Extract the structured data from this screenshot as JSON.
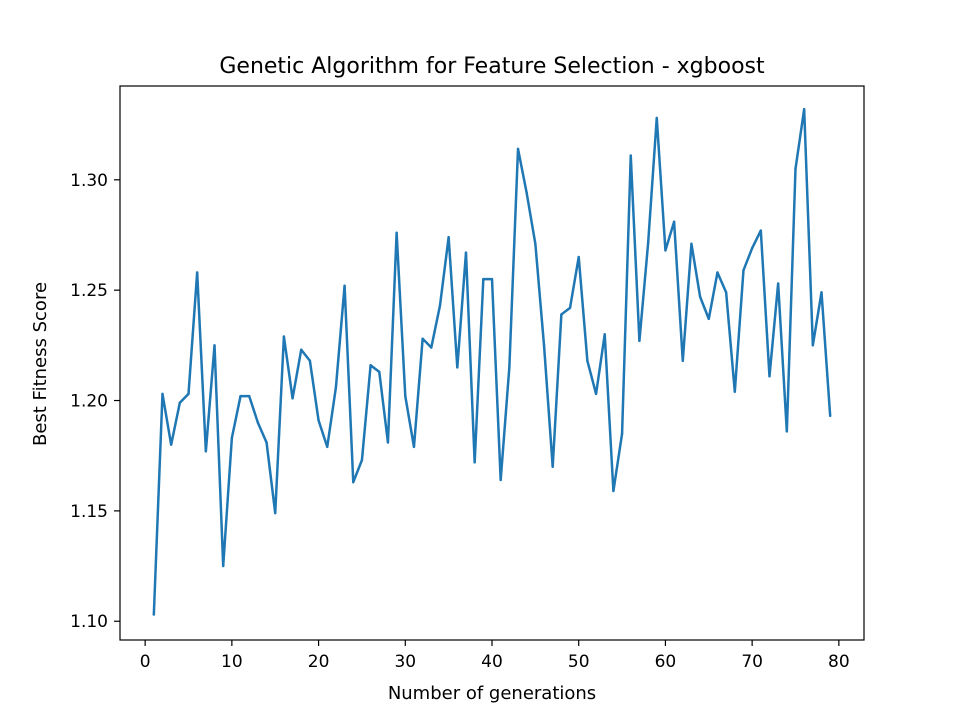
{
  "chart_data": {
    "type": "line",
    "title": "Genetic Algorithm for Feature Selection - xgboost",
    "xlabel": "Number of generations",
    "ylabel": "Best Fitness Score",
    "xlim": [
      -2.9,
      82.9
    ],
    "ylim": [
      1.0915,
      1.3425
    ],
    "xticks": [
      0,
      10,
      20,
      30,
      40,
      50,
      60,
      70,
      80
    ],
    "yticks": [
      1.1,
      1.15,
      1.2,
      1.25,
      1.3
    ],
    "ytick_labels": [
      "1.10",
      "1.15",
      "1.20",
      "1.25",
      "1.30"
    ],
    "grid": false,
    "line_color": "#1f77b4",
    "series": [
      {
        "x": [
          1,
          2,
          3,
          4,
          5,
          6,
          7,
          8,
          9,
          10,
          11,
          12,
          13,
          14,
          15,
          16,
          17,
          18,
          19,
          20,
          21,
          22,
          23,
          24,
          25,
          26,
          27,
          28,
          29,
          30,
          31,
          32,
          33,
          34,
          35,
          36,
          37,
          38,
          39,
          40,
          41,
          42,
          43,
          44,
          45,
          46,
          47,
          48,
          49,
          50,
          51,
          52,
          53,
          54,
          55,
          56,
          57,
          58,
          59,
          60,
          61,
          62,
          63,
          64,
          65,
          66,
          67,
          68,
          69,
          70,
          71,
          72,
          73,
          74,
          75,
          76,
          77,
          78,
          79
        ],
        "values": [
          1.103,
          1.203,
          1.18,
          1.199,
          1.203,
          1.258,
          1.177,
          1.225,
          1.125,
          1.183,
          1.202,
          1.202,
          1.19,
          1.181,
          1.149,
          1.229,
          1.201,
          1.223,
          1.218,
          1.191,
          1.179,
          1.206,
          1.252,
          1.163,
          1.173,
          1.216,
          1.213,
          1.181,
          1.276,
          1.202,
          1.179,
          1.228,
          1.224,
          1.243,
          1.274,
          1.215,
          1.267,
          1.172,
          1.255,
          1.255,
          1.164,
          1.215,
          1.314,
          1.294,
          1.271,
          1.225,
          1.17,
          1.239,
          1.242,
          1.265,
          1.218,
          1.203,
          1.23,
          1.159,
          1.185,
          1.311,
          1.227,
          1.271,
          1.328,
          1.268,
          1.281,
          1.218,
          1.271,
          1.247,
          1.237,
          1.258,
          1.249,
          1.204,
          1.259,
          1.269,
          1.277,
          1.211,
          1.253,
          1.186,
          1.305,
          1.332,
          1.225,
          1.249,
          1.193
        ]
      }
    ]
  }
}
